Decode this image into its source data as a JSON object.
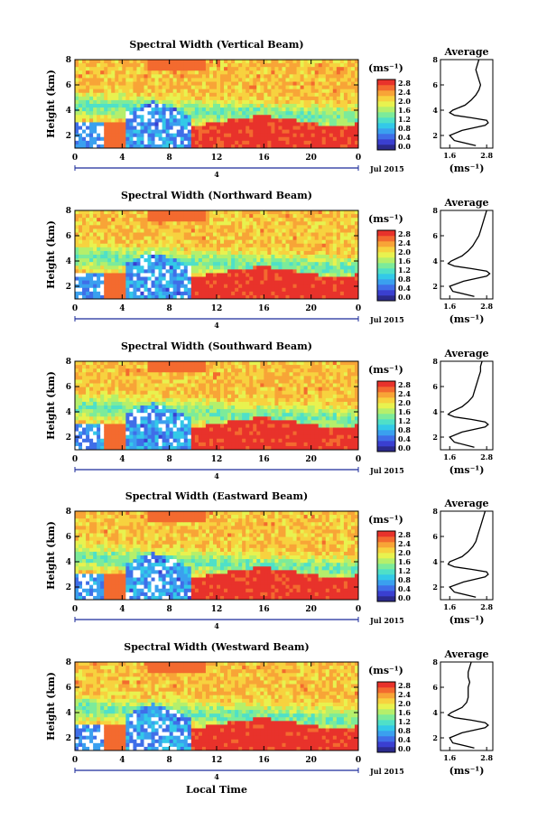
{
  "figure": {
    "xlabel": "Local Time",
    "ylabel": "Height (km)",
    "date_label": "Jul 2015",
    "day_label": "4",
    "unit_label": "(ms⁻¹)",
    "avg_unit_label": "(ms⁻¹)",
    "avg_title": "Average"
  },
  "colorbar_colors": [
    "#2b2a8c",
    "#3a3fd0",
    "#3f6ee8",
    "#3aa0ef",
    "#33c9e8",
    "#4fe0c8",
    "#7ceb9a",
    "#b5ef6b",
    "#e8f24f",
    "#f7d23f",
    "#f8a437",
    "#f36a2f",
    "#e8322b"
  ],
  "chart_data": [
    {
      "type": "heatmap",
      "title": "Spectral Width (Vertical Beam)",
      "x_ticks": [
        "0",
        "4",
        "8",
        "12",
        "16",
        "20",
        "0"
      ],
      "y_ticks": [
        "2",
        "4",
        "6",
        "8"
      ],
      "colorbar_ticks": [
        "2.8",
        "2.4",
        "2.0",
        "1.6",
        "1.2",
        "0.8",
        "0.4",
        "0.0"
      ],
      "xlim": [
        0,
        24
      ],
      "ylim": [
        1.0,
        8.0
      ],
      "average": {
        "x_ticks": [
          "1.6",
          "2.8"
        ],
        "y_ticks": [
          "2",
          "4",
          "6",
          "8"
        ],
        "xlim": [
          1.3,
          3.0
        ],
        "ylim": [
          1.0,
          8.0
        ],
        "height": [
          1.2,
          1.6,
          2.0,
          2.4,
          2.8,
          3.0,
          3.2,
          3.4,
          3.6,
          3.8,
          4.0,
          4.4,
          4.8,
          5.2,
          5.6,
          6.0,
          6.4,
          6.8,
          7.2,
          7.6,
          8.0
        ],
        "value": [
          2.45,
          1.75,
          1.6,
          2.0,
          2.75,
          2.85,
          2.8,
          2.3,
          1.75,
          1.6,
          1.7,
          2.1,
          2.3,
          2.45,
          2.55,
          2.6,
          2.55,
          2.5,
          2.45,
          2.5,
          2.55
        ]
      }
    },
    {
      "type": "heatmap",
      "title": "Spectral Width (Northward Beam)",
      "x_ticks": [
        "0",
        "4",
        "8",
        "12",
        "16",
        "20",
        "0"
      ],
      "y_ticks": [
        "2",
        "4",
        "6",
        "8"
      ],
      "colorbar_ticks": [
        "2.8",
        "2.4",
        "2.0",
        "1.6",
        "1.2",
        "0.8",
        "0.4",
        "0.0"
      ],
      "xlim": [
        0,
        24
      ],
      "ylim": [
        1.0,
        8.0
      ],
      "average": {
        "x_ticks": [
          "1.6",
          "2.8"
        ],
        "y_ticks": [
          "2",
          "4",
          "6",
          "8"
        ],
        "xlim": [
          1.3,
          3.0
        ],
        "ylim": [
          1.0,
          8.0
        ],
        "height": [
          1.2,
          1.6,
          2.0,
          2.4,
          2.8,
          3.0,
          3.2,
          3.4,
          3.6,
          3.8,
          4.0,
          4.4,
          4.8,
          5.2,
          5.6,
          6.0,
          6.4,
          6.8,
          7.2,
          7.6,
          8.0
        ],
        "value": [
          2.4,
          1.7,
          1.6,
          2.05,
          2.8,
          2.9,
          2.8,
          2.3,
          1.75,
          1.55,
          1.65,
          2.0,
          2.2,
          2.35,
          2.45,
          2.55,
          2.6,
          2.65,
          2.7,
          2.75,
          2.8
        ]
      }
    },
    {
      "type": "heatmap",
      "title": "Spectral Width (Southward Beam)",
      "x_ticks": [
        "0",
        "4",
        "8",
        "12",
        "16",
        "20",
        "0"
      ],
      "y_ticks": [
        "2",
        "4",
        "6",
        "8"
      ],
      "colorbar_ticks": [
        "2.8",
        "2.4",
        "2.0",
        "1.6",
        "1.2",
        "0.8",
        "0.4",
        "0.0"
      ],
      "xlim": [
        0,
        24
      ],
      "ylim": [
        1.0,
        8.0
      ],
      "average": {
        "x_ticks": [
          "1.6",
          "2.8"
        ],
        "y_ticks": [
          "2",
          "4",
          "6",
          "8"
        ],
        "xlim": [
          1.3,
          3.0
        ],
        "ylim": [
          1.0,
          8.0
        ],
        "height": [
          1.2,
          1.6,
          2.0,
          2.4,
          2.8,
          3.0,
          3.2,
          3.4,
          3.6,
          3.8,
          4.0,
          4.4,
          4.8,
          5.2,
          5.6,
          6.0,
          6.4,
          6.8,
          7.2,
          7.6,
          8.0
        ],
        "value": [
          2.4,
          1.75,
          1.6,
          2.0,
          2.75,
          2.85,
          2.75,
          2.3,
          1.75,
          1.55,
          1.65,
          2.0,
          2.2,
          2.35,
          2.4,
          2.45,
          2.5,
          2.55,
          2.6,
          2.6,
          2.65
        ]
      }
    },
    {
      "type": "heatmap",
      "title": "Spectral Width (Eastward Beam)",
      "x_ticks": [
        "0",
        "4",
        "8",
        "12",
        "16",
        "20",
        "0"
      ],
      "y_ticks": [
        "2",
        "4",
        "6",
        "8"
      ],
      "colorbar_ticks": [
        "2.8",
        "2.4",
        "2.0",
        "1.6",
        "1.2",
        "0.8",
        "0.4",
        "0.0"
      ],
      "xlim": [
        0,
        24
      ],
      "ylim": [
        1.0,
        8.0
      ],
      "average": {
        "x_ticks": [
          "1.6",
          "2.8"
        ],
        "y_ticks": [
          "2",
          "4",
          "6",
          "8"
        ],
        "xlim": [
          1.3,
          3.0
        ],
        "ylim": [
          1.0,
          8.0
        ],
        "height": [
          1.2,
          1.6,
          2.0,
          2.4,
          2.8,
          3.0,
          3.2,
          3.4,
          3.6,
          3.8,
          4.0,
          4.4,
          4.8,
          5.2,
          5.6,
          6.0,
          6.4,
          6.8,
          7.2,
          7.6,
          8.0
        ],
        "value": [
          2.45,
          1.75,
          1.6,
          2.05,
          2.75,
          2.85,
          2.8,
          2.3,
          1.75,
          1.55,
          1.6,
          2.0,
          2.2,
          2.35,
          2.45,
          2.5,
          2.55,
          2.6,
          2.65,
          2.7,
          2.75
        ]
      }
    },
    {
      "type": "heatmap",
      "title": "Spectral Width (Westward Beam)",
      "x_ticks": [
        "0",
        "4",
        "8",
        "12",
        "16",
        "20",
        "0"
      ],
      "y_ticks": [
        "2",
        "4",
        "6",
        "8"
      ],
      "colorbar_ticks": [
        "2.8",
        "2.4",
        "2.0",
        "1.6",
        "1.2",
        "0.8",
        "0.4",
        "0.0"
      ],
      "xlim": [
        0,
        24
      ],
      "ylim": [
        1.0,
        8.0
      ],
      "average": {
        "x_ticks": [
          "1.6",
          "2.8"
        ],
        "y_ticks": [
          "2",
          "4",
          "6",
          "8"
        ],
        "xlim": [
          1.3,
          3.0
        ],
        "ylim": [
          1.0,
          8.0
        ],
        "height": [
          1.2,
          1.6,
          2.0,
          2.4,
          2.8,
          3.0,
          3.2,
          3.4,
          3.6,
          3.8,
          4.0,
          4.4,
          4.8,
          5.2,
          5.6,
          6.0,
          6.4,
          6.8,
          7.2,
          7.6,
          8.0
        ],
        "value": [
          2.4,
          1.7,
          1.6,
          2.0,
          2.75,
          2.85,
          2.75,
          2.3,
          1.75,
          1.55,
          1.65,
          2.0,
          2.15,
          2.2,
          2.2,
          2.2,
          2.25,
          2.2,
          2.2,
          2.25,
          2.3
        ]
      }
    }
  ]
}
